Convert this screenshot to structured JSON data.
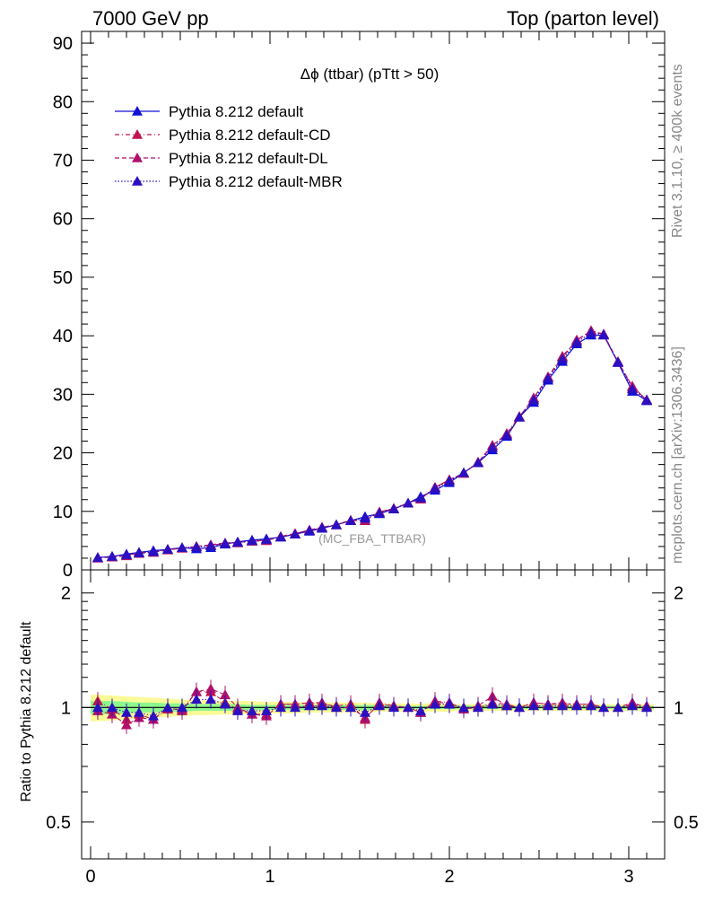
{
  "header": {
    "left": "7000 GeV pp",
    "right": "Top (parton level)"
  },
  "side": {
    "rivet": "Rivet 3.1.10, ≥ 400k events",
    "mcplots": "mcplots.cern.ch [arXiv:1306.3436]"
  },
  "colors": {
    "default": "#1010d8",
    "cd": "#c0144c",
    "dl": "#b0106a",
    "mbr": "#2a10c0",
    "band_inner": "#8cf78c",
    "band_outer": "#fafa96"
  },
  "chart_data": [
    {
      "type": "line",
      "title": "Δϕ (ttbar) (pTtt > 50)",
      "watermark": "(MC_FBA_TTBAR)",
      "xlabel": "",
      "ylabel": "",
      "xlim": [
        -0.05,
        3.2
      ],
      "ylim": [
        0,
        92
      ],
      "yticks": [
        "0",
        "10",
        "20",
        "30",
        "40",
        "50",
        "60",
        "70",
        "80",
        "90"
      ],
      "legend_position": "top-left",
      "x": [
        0.04,
        0.12,
        0.2,
        0.27,
        0.35,
        0.43,
        0.51,
        0.59,
        0.67,
        0.75,
        0.82,
        0.9,
        0.98,
        1.06,
        1.14,
        1.22,
        1.29,
        1.37,
        1.45,
        1.53,
        1.61,
        1.69,
        1.77,
        1.84,
        1.92,
        2.0,
        2.08,
        2.16,
        2.24,
        2.32,
        2.39,
        2.47,
        2.55,
        2.63,
        2.71,
        2.79,
        2.86,
        2.94,
        3.02,
        3.1
      ],
      "series": [
        {
          "name": "Pythia 8.212 default",
          "color": "#1010d8",
          "style": "solid",
          "values": [
            2.1,
            2.3,
            2.7,
            3.0,
            3.3,
            3.5,
            3.8,
            3.6,
            3.8,
            4.4,
            4.8,
            5.1,
            5.3,
            5.6,
            6.1,
            6.6,
            7.1,
            7.7,
            8.4,
            9.1,
            9.6,
            10.4,
            11.4,
            12.5,
            13.6,
            14.9,
            16.6,
            18.3,
            20.5,
            22.8,
            26.1,
            28.6,
            32.4,
            35.6,
            38.6,
            40.1,
            40.1,
            35.4,
            30.5,
            28.9
          ]
        },
        {
          "name": "Pythia 8.212 default-CD",
          "color": "#c0144c",
          "style": "dashdot",
          "values": [
            2.1,
            2.2,
            2.5,
            2.9,
            3.0,
            3.4,
            3.7,
            4.0,
            4.2,
            4.5,
            4.6,
            4.9,
            5.1,
            5.7,
            6.2,
            6.8,
            7.2,
            7.7,
            8.5,
            8.4,
            9.9,
            10.5,
            11.4,
            12.1,
            14.1,
            15.4,
            16.5,
            18.4,
            21.2,
            23.3,
            26.2,
            29.2,
            33.0,
            36.5,
            39.2,
            40.9,
            40.2,
            35.6,
            31.2,
            29.1
          ]
        },
        {
          "name": "Pythia 8.212 default-DL",
          "color": "#b0106a",
          "style": "dashed",
          "values": [
            2.0,
            2.2,
            2.4,
            2.8,
            3.0,
            3.5,
            3.7,
            4.0,
            4.3,
            4.6,
            4.7,
            4.9,
            5.0,
            5.7,
            6.2,
            6.8,
            7.3,
            7.7,
            8.4,
            8.5,
            9.8,
            10.5,
            11.4,
            12.1,
            14.1,
            15.4,
            16.5,
            18.4,
            21.3,
            23.1,
            26.1,
            29.4,
            32.9,
            36.3,
            39.3,
            40.8,
            40.3,
            35.5,
            31.4,
            29.0
          ]
        },
        {
          "name": "Pythia 8.212 default-MBR",
          "color": "#2a10c0",
          "style": "dotted",
          "values": [
            2.1,
            2.3,
            2.6,
            2.9,
            3.1,
            3.5,
            3.8,
            3.9,
            4.1,
            4.5,
            4.7,
            5.0,
            5.2,
            5.6,
            6.1,
            6.7,
            7.2,
            7.7,
            8.4,
            8.8,
            9.7,
            10.4,
            11.4,
            12.3,
            13.9,
            15.2,
            16.6,
            18.3,
            20.9,
            23.0,
            26.1,
            29.0,
            32.7,
            36.0,
            38.9,
            40.5,
            40.2,
            35.5,
            30.9,
            29.0
          ]
        }
      ]
    },
    {
      "type": "line",
      "ylabel": "Ratio to Pythia 8.212 default",
      "xlabel": "",
      "xlim": [
        -0.05,
        3.2
      ],
      "ylim": [
        0.4,
        2.3
      ],
      "yscale": "log",
      "yticks": [
        "0.5",
        "1",
        "2"
      ],
      "xticks": [
        "0",
        "1",
        "2",
        "3"
      ],
      "reference_line": 1.0,
      "bands": {
        "inner": [
          0.96,
          0.96,
          0.965,
          0.97,
          0.97,
          0.975,
          0.975,
          0.98,
          0.98,
          0.98,
          0.98,
          0.985,
          0.985,
          0.985,
          0.985,
          0.985,
          0.985,
          0.985,
          0.985,
          0.985,
          0.985,
          0.99,
          0.99,
          0.99,
          0.99,
          0.99,
          0.99,
          0.99,
          0.99,
          0.99,
          0.99,
          0.99,
          0.99,
          0.99,
          0.99,
          0.99,
          0.99,
          0.99,
          0.99,
          0.99
        ],
        "inner_hi": [
          1.04,
          1.04,
          1.035,
          1.03,
          1.03,
          1.025,
          1.025,
          1.02,
          1.02,
          1.02,
          1.02,
          1.015,
          1.015,
          1.015,
          1.015,
          1.015,
          1.015,
          1.015,
          1.015,
          1.015,
          1.015,
          1.01,
          1.01,
          1.01,
          1.01,
          1.01,
          1.01,
          1.01,
          1.01,
          1.01,
          1.01,
          1.01,
          1.01,
          1.01,
          1.01,
          1.01,
          1.01,
          1.01,
          1.01,
          1.01
        ],
        "outer": [
          0.92,
          0.925,
          0.93,
          0.935,
          0.94,
          0.945,
          0.95,
          0.955,
          0.955,
          0.96,
          0.96,
          0.96,
          0.965,
          0.965,
          0.965,
          0.97,
          0.97,
          0.97,
          0.97,
          0.97,
          0.975,
          0.975,
          0.975,
          0.975,
          0.975,
          0.975,
          0.98,
          0.98,
          0.98,
          0.98,
          0.98,
          0.98,
          0.98,
          0.98,
          0.98,
          0.98,
          0.98,
          0.98,
          0.98,
          0.98
        ],
        "outer_hi": [
          1.08,
          1.075,
          1.07,
          1.065,
          1.06,
          1.055,
          1.05,
          1.045,
          1.045,
          1.04,
          1.04,
          1.04,
          1.035,
          1.035,
          1.035,
          1.03,
          1.03,
          1.03,
          1.03,
          1.03,
          1.025,
          1.025,
          1.025,
          1.025,
          1.025,
          1.025,
          1.02,
          1.02,
          1.02,
          1.02,
          1.02,
          1.02,
          1.02,
          1.02,
          1.02,
          1.02,
          1.02,
          1.02,
          1.02,
          1.02
        ]
      },
      "series": [
        {
          "name": "Pythia 8.212 default-CD",
          "color": "#c0144c",
          "style": "dashdot",
          "values": [
            1.04,
            0.99,
            0.93,
            0.96,
            0.93,
            0.99,
            0.99,
            1.1,
            1.1,
            1.03,
            0.99,
            0.96,
            0.96,
            1.02,
            1.02,
            1.03,
            1.02,
            1.01,
            1.02,
            0.93,
            1.03,
            1.01,
            1.0,
            0.97,
            1.04,
            1.03,
            0.99,
            1.0,
            1.03,
            1.02,
            1.0,
            1.03,
            1.02,
            1.03,
            1.02,
            1.02,
            1.0,
            1.0,
            1.02,
            1.01
          ]
        },
        {
          "name": "Pythia 8.212 default-DL",
          "color": "#b0106a",
          "style": "dashed",
          "values": [
            0.98,
            0.96,
            0.9,
            0.94,
            0.93,
            1.0,
            0.98,
            1.1,
            1.12,
            1.08,
            1.0,
            0.96,
            0.95,
            1.02,
            1.02,
            1.03,
            1.03,
            1.0,
            1.0,
            0.94,
            1.02,
            1.01,
            1.0,
            0.97,
            1.03,
            1.03,
            0.99,
            1.01,
            1.07,
            1.01,
            1.0,
            1.03,
            1.02,
            1.02,
            1.02,
            1.02,
            1.0,
            1.0,
            1.03,
            1.0
          ]
        },
        {
          "name": "Pythia 8.212 default-MBR",
          "color": "#2a10c0",
          "style": "dotted",
          "values": [
            1.0,
            1.0,
            0.97,
            0.97,
            0.95,
            1.0,
            1.0,
            1.05,
            1.05,
            1.02,
            0.98,
            0.98,
            0.98,
            1.0,
            1.0,
            1.01,
            1.01,
            1.0,
            1.0,
            0.97,
            1.01,
            1.0,
            1.0,
            0.98,
            1.02,
            1.02,
            1.0,
            1.0,
            1.02,
            1.01,
            1.0,
            1.01,
            1.01,
            1.01,
            1.01,
            1.01,
            1.0,
            1.0,
            1.01,
            1.0
          ]
        }
      ]
    }
  ]
}
